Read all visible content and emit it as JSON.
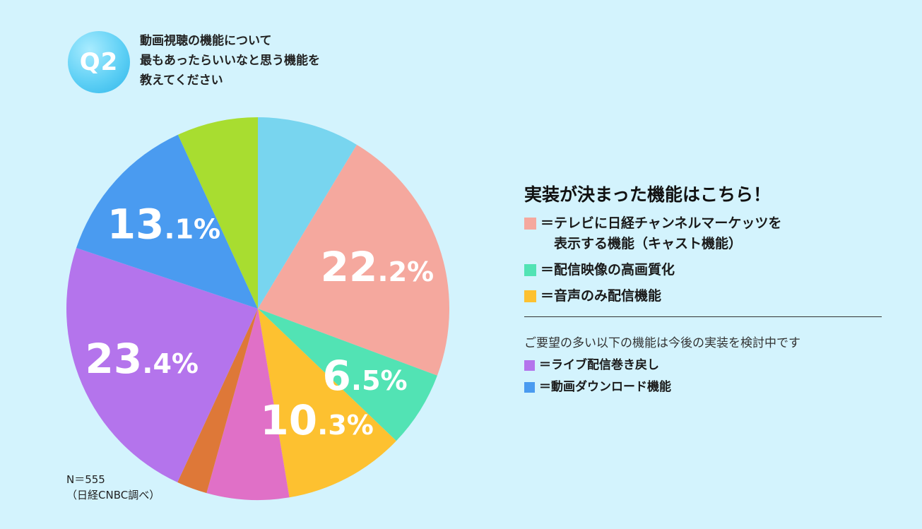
{
  "question": {
    "badge": "Q2",
    "lines": [
      "動画視聴の機能について",
      "最もあったらいいなと思う機能を",
      "教えてください"
    ]
  },
  "chart_data": {
    "type": "pie",
    "start_angle_deg": 0,
    "direction": "clockwise",
    "slices": [
      {
        "value": 8.7,
        "color": "#78d5ef",
        "label": ""
      },
      {
        "value": 22.2,
        "color": "#f5a89e",
        "label": "22.2%"
      },
      {
        "value": 6.5,
        "color": "#52e3b4",
        "label": "6.5%"
      },
      {
        "value": 10.3,
        "color": "#fdc130",
        "label": "10.3%"
      },
      {
        "value": 7.0,
        "color": "#e070c7",
        "label": ""
      },
      {
        "value": 2.6,
        "color": "#de7838",
        "label": ""
      },
      {
        "value": 23.4,
        "color": "#b474ec",
        "label": "23.4%"
      },
      {
        "value": 13.1,
        "color": "#4a9bf0",
        "label": "13.1%"
      },
      {
        "value": 6.9,
        "color": "#a8dd30",
        "label": ""
      }
    ]
  },
  "note": {
    "line1": "N＝555",
    "line2": "（日経CNBC調べ）"
  },
  "legend": {
    "title": "実装が決まった機能はこちら！",
    "items": [
      {
        "color": "#f5a89e",
        "text": "＝テレビに日経チャンネルマーケッツを\n　表示する機能（キャスト機能）"
      },
      {
        "color": "#52e3b4",
        "text": "＝配信映像の高画質化"
      },
      {
        "color": "#fdc130",
        "text": "＝音声のみ配信機能"
      }
    ],
    "sub_title": "ご要望の多い以下の機能は今後の実装を検討中です",
    "sub_items": [
      {
        "color": "#b474ec",
        "text": "＝ライブ配信巻き戻し"
      },
      {
        "color": "#4a9bf0",
        "text": "＝動画ダウンロード機能"
      }
    ]
  }
}
